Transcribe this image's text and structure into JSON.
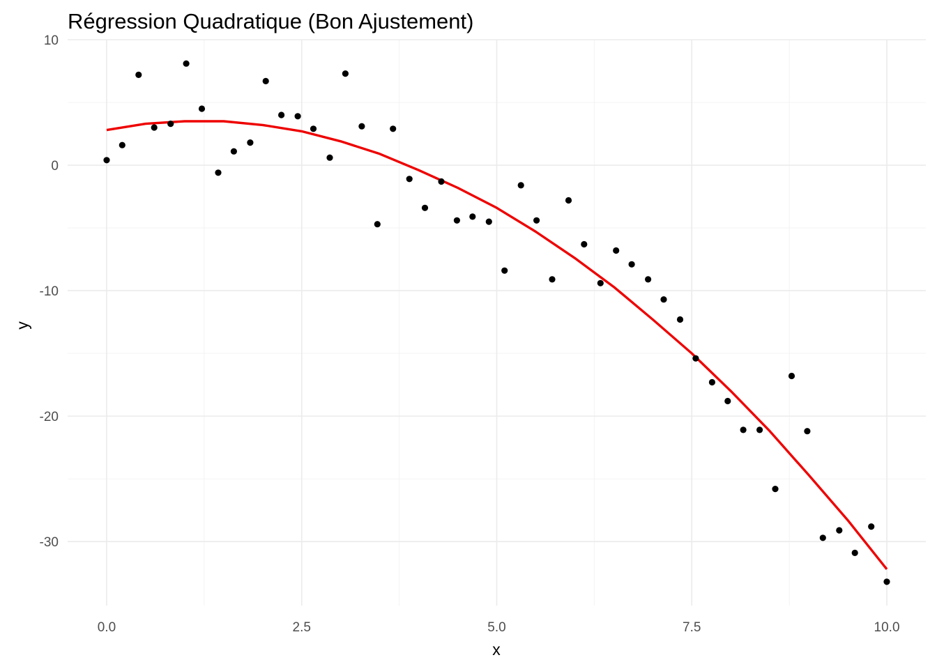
{
  "chart_data": {
    "type": "scatter",
    "title": "Régression Quadratique (Bon Ajustement)",
    "xlabel": "x",
    "ylabel": "y",
    "xlim": [
      -0.5,
      10.5
    ],
    "ylim": [
      -35.1,
      10.0
    ],
    "grid": true,
    "x_ticks": [
      0.0,
      2.5,
      5.0,
      7.5,
      10.0
    ],
    "x_tick_labels": [
      "0.0",
      "2.5",
      "5.0",
      "7.5",
      "10.0"
    ],
    "x_minor": [
      1.25,
      3.75,
      6.25,
      8.75
    ],
    "y_ticks": [
      10,
      0,
      -10,
      -20,
      -30
    ],
    "y_tick_labels": [
      "10",
      "0",
      "-10",
      "-20",
      "-30"
    ],
    "y_minor": [
      5,
      -5,
      -15,
      -25
    ],
    "series": [
      {
        "kind": "points",
        "color": "#000000",
        "x": [
          0.0,
          0.2,
          0.41,
          0.61,
          0.82,
          1.02,
          1.22,
          1.43,
          1.63,
          1.84,
          2.04,
          2.24,
          2.45,
          2.65,
          2.86,
          3.06,
          3.27,
          3.47,
          3.67,
          3.88,
          4.08,
          4.29,
          4.49,
          4.69,
          4.9,
          5.1,
          5.31,
          5.51,
          5.71,
          5.92,
          6.12,
          6.33,
          6.53,
          6.73,
          6.94,
          7.14,
          7.35,
          7.55,
          7.76,
          7.96,
          8.16,
          8.37,
          8.57,
          8.78,
          8.98,
          9.18,
          9.39,
          9.59,
          9.8,
          10.0
        ],
        "y": [
          0.4,
          1.6,
          7.2,
          3.0,
          3.3,
          8.1,
          4.5,
          -0.6,
          1.1,
          1.8,
          6.7,
          4.0,
          3.9,
          2.9,
          0.6,
          7.3,
          3.1,
          -4.7,
          2.9,
          -1.1,
          -3.4,
          -1.3,
          -4.4,
          -4.1,
          -4.5,
          -8.4,
          -1.6,
          -4.4,
          -9.1,
          -2.8,
          -6.3,
          -9.4,
          -6.8,
          -7.9,
          -9.1,
          -10.7,
          -12.3,
          -15.4,
          -17.3,
          -18.8,
          -21.1,
          -21.1,
          -25.8,
          -16.8,
          -21.2,
          -29.7,
          -29.1,
          -30.9,
          -28.8,
          -33.2
        ]
      },
      {
        "kind": "fit",
        "color": "#ee0000",
        "x": [
          0.0,
          0.5,
          1.0,
          1.5,
          2.0,
          2.5,
          3.0,
          3.5,
          4.0,
          4.5,
          5.0,
          5.5,
          6.0,
          6.5,
          7.0,
          7.5,
          8.0,
          8.5,
          9.0,
          9.5,
          10.0
        ],
        "y": [
          2.8,
          3.3,
          3.5,
          3.5,
          3.2,
          2.7,
          1.9,
          0.9,
          -0.4,
          -1.8,
          -3.4,
          -5.3,
          -7.4,
          -9.7,
          -12.3,
          -15.0,
          -18.0,
          -21.2,
          -24.7,
          -28.3,
          -32.2
        ]
      }
    ]
  }
}
